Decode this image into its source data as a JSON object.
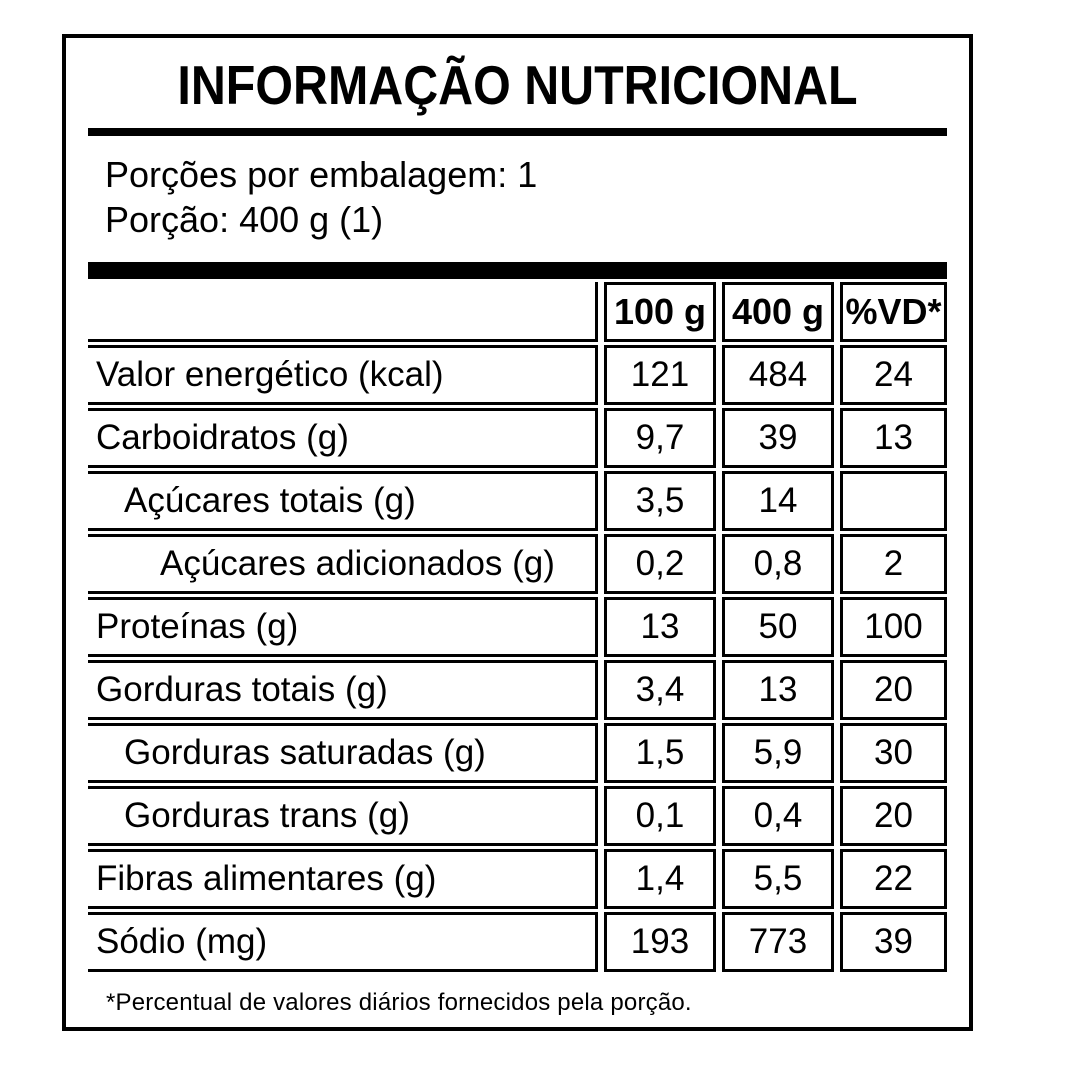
{
  "page": {
    "background": "#ffffff",
    "ink": "#000000"
  },
  "label": {
    "title": "INFORMAÇÃO NUTRICIONAL",
    "servings_per_package_line": "Porções por embalagem: 1",
    "portion_line": "Porção: 400 g (1)",
    "columns": [
      "100 g",
      "400 g",
      "%VD*"
    ],
    "rows": [
      {
        "name": "Valor energético (kcal)",
        "indent": 0,
        "per_100g": "121",
        "per_400g": "484",
        "percent_dv": "24"
      },
      {
        "name": "Carboidratos (g)",
        "indent": 0,
        "per_100g": "9,7",
        "per_400g": "39",
        "percent_dv": "13"
      },
      {
        "name": "Açúcares totais (g)",
        "indent": 1,
        "per_100g": "3,5",
        "per_400g": "14",
        "percent_dv": ""
      },
      {
        "name": "Açúcares adicionados (g)",
        "indent": 2,
        "per_100g": "0,2",
        "per_400g": "0,8",
        "percent_dv": "2"
      },
      {
        "name": "Proteínas (g)",
        "indent": 0,
        "per_100g": "13",
        "per_400g": "50",
        "percent_dv": "100"
      },
      {
        "name": "Gorduras totais (g)",
        "indent": 0,
        "per_100g": "3,4",
        "per_400g": "13",
        "percent_dv": "20"
      },
      {
        "name": "Gorduras saturadas (g)",
        "indent": 1,
        "per_100g": "1,5",
        "per_400g": "5,9",
        "percent_dv": "30"
      },
      {
        "name": "Gorduras trans (g)",
        "indent": 1,
        "per_100g": "0,1",
        "per_400g": "0,4",
        "percent_dv": "20"
      },
      {
        "name": "Fibras alimentares (g)",
        "indent": 0,
        "per_100g": "1,4",
        "per_400g": "5,5",
        "percent_dv": "22"
      },
      {
        "name": "Sódio (mg)",
        "indent": 0,
        "per_100g": "193",
        "per_400g": "773",
        "percent_dv": "39"
      }
    ],
    "footnote": "*Percentual de valores diários fornecidos pela porção."
  }
}
